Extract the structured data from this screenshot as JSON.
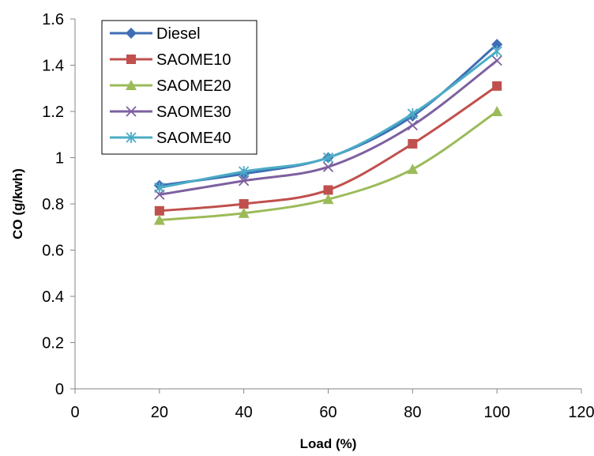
{
  "chart_data": {
    "type": "line",
    "title": "",
    "xlabel": "Load (%)",
    "ylabel": "CO (g/kwh)",
    "xlim": [
      0,
      120
    ],
    "ylim": [
      0,
      1.6
    ],
    "x_ticks": [
      "0",
      "20",
      "40",
      "60",
      "80",
      "100",
      "120"
    ],
    "y_ticks": [
      "0",
      "0.2",
      "0.4",
      "0.6",
      "0.8",
      "1",
      "1.2",
      "1.4",
      "1.6"
    ],
    "x_tick_values": [
      0,
      20,
      40,
      60,
      80,
      100,
      120
    ],
    "y_tick_values": [
      0,
      0.2,
      0.4,
      0.6,
      0.8,
      1,
      1.2,
      1.4,
      1.6
    ],
    "grid": false,
    "legend_position": "top-left",
    "x": [
      20,
      40,
      60,
      80,
      100
    ],
    "series": [
      {
        "name": "Diesel",
        "values": [
          0.88,
          0.93,
          1.0,
          1.18,
          1.49
        ],
        "color": "#3f6eb4",
        "marker": "diamond"
      },
      {
        "name": "SAOME10",
        "values": [
          0.77,
          0.8,
          0.86,
          1.06,
          1.31
        ],
        "color": "#c0504d",
        "marker": "square"
      },
      {
        "name": "SAOME20",
        "values": [
          0.73,
          0.76,
          0.82,
          0.95,
          1.2
        ],
        "color": "#9bbb59",
        "marker": "triangle"
      },
      {
        "name": "SAOME30",
        "values": [
          0.84,
          0.9,
          0.96,
          1.14,
          1.42
        ],
        "color": "#7d60a0",
        "marker": "x"
      },
      {
        "name": "SAOME40",
        "values": [
          0.87,
          0.94,
          1.0,
          1.19,
          1.46
        ],
        "color": "#4bacc6",
        "marker": "star"
      }
    ]
  }
}
